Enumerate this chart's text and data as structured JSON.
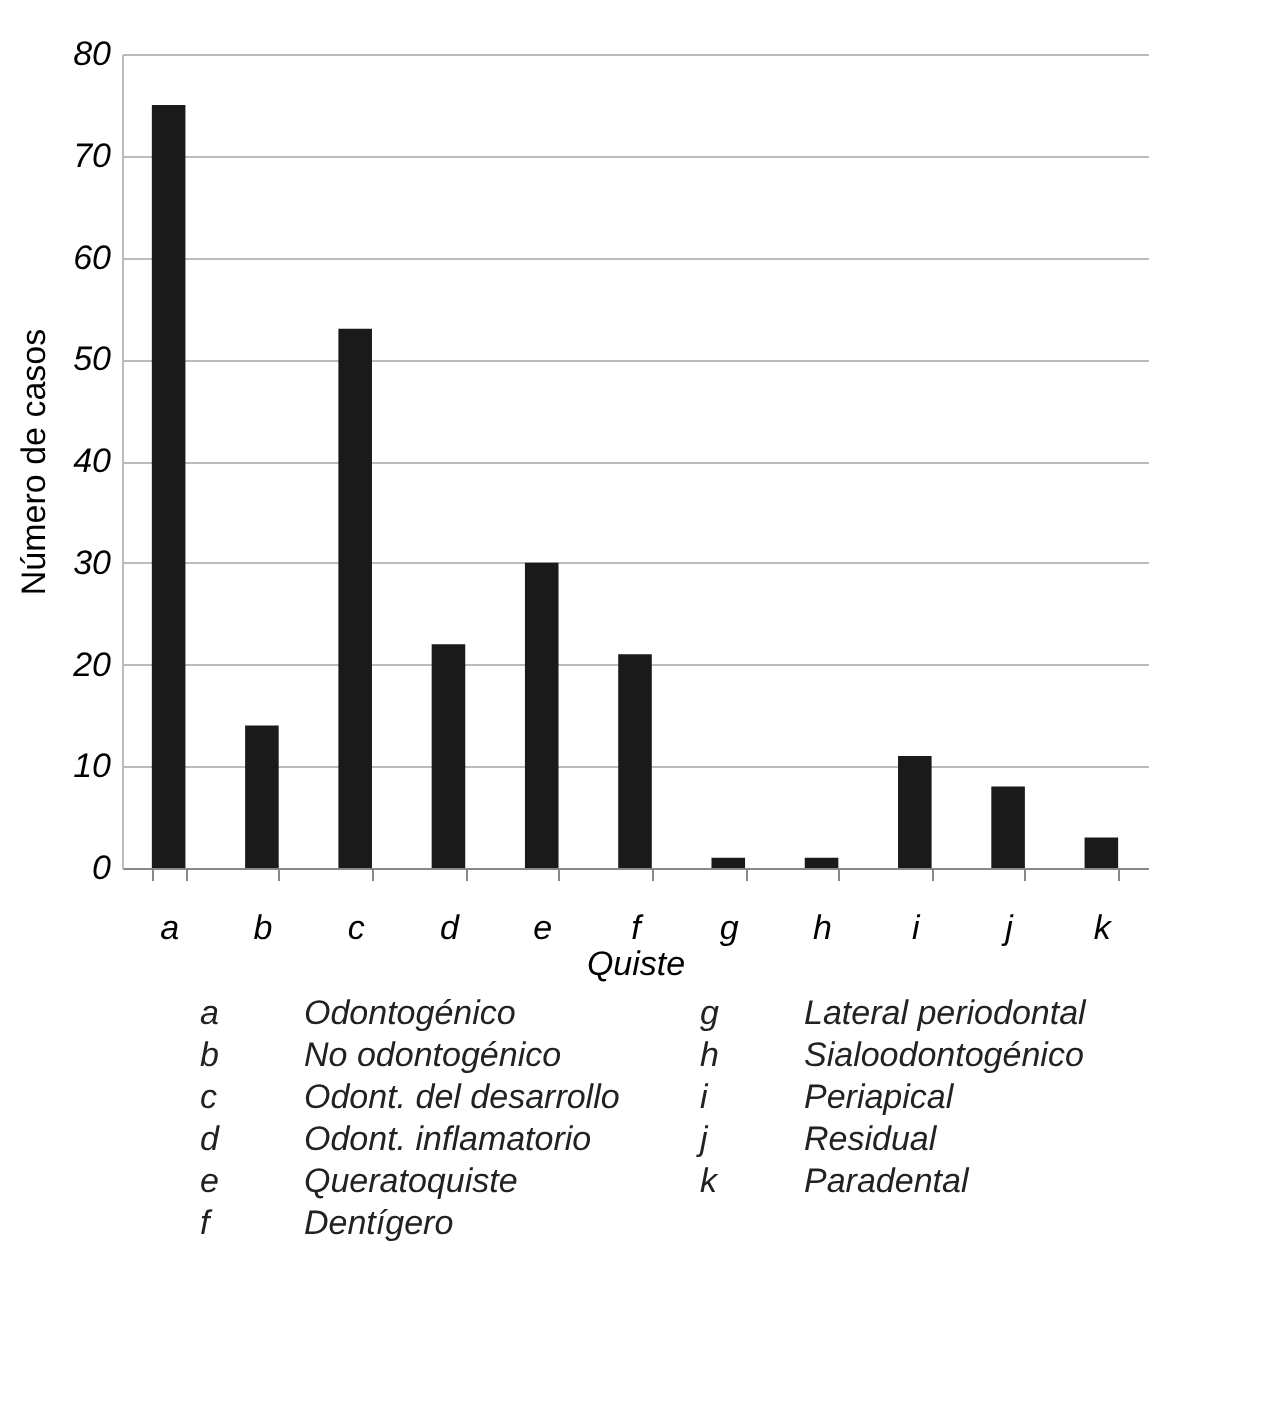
{
  "chart_data": {
    "type": "bar",
    "xlabel": "Quiste",
    "ylabel": "Número de casos",
    "categories": [
      "a",
      "b",
      "c",
      "d",
      "e",
      "f",
      "g",
      "h",
      "i",
      "j",
      "k"
    ],
    "values": [
      75,
      14,
      53,
      22,
      30,
      21,
      1,
      1,
      11,
      8,
      3
    ],
    "color": "#1a1a1a",
    "ylim": [
      0,
      80
    ],
    "yticks": [
      0,
      10,
      20,
      30,
      40,
      50,
      60,
      70,
      80
    ],
    "grid": "y",
    "annotations": [
      "a Odontogénico",
      "b No odontogénico",
      "c Odont. del desarrollo",
      "d Odont. inflamatorio",
      "e Queratoquiste",
      "f Dentígero",
      "g Lateral periodontal",
      "h Sialoodontogénico",
      "i Periapical",
      "j Residual",
      "k Paradental"
    ]
  }
}
